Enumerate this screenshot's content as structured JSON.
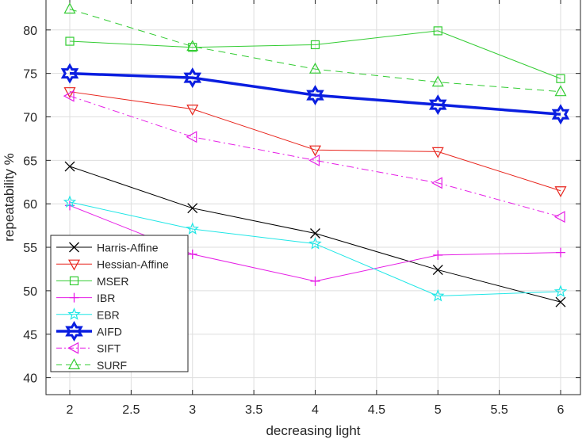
{
  "chart_data": {
    "type": "line",
    "title": "",
    "xlabel": "decreasing light",
    "ylabel": "repeatability %",
    "xlim": [
      1.8,
      6.2
    ],
    "ylim": [
      37.5,
      85
    ],
    "grid": true,
    "legend_position": "bottom-left",
    "x": [
      2,
      3,
      4,
      5,
      6
    ],
    "xticks": [
      2,
      2.5,
      3,
      3.5,
      4,
      4.5,
      5,
      5.5,
      6
    ],
    "xtick_labels": [
      "2",
      "2.5",
      "3",
      "3.5",
      "4",
      "4.5",
      "5",
      "5.5",
      "6"
    ],
    "yticks": [
      40,
      45,
      50,
      55,
      60,
      65,
      70,
      75,
      80
    ],
    "ytick_labels": [
      "40",
      "45",
      "50",
      "55",
      "60",
      "65",
      "70",
      "75",
      "80"
    ],
    "series": [
      {
        "name": "Harris-Affine",
        "values": [
          64.3,
          59.5,
          56.6,
          52.4,
          48.7
        ],
        "color": "#000000",
        "marker": "x",
        "dash": "solid",
        "width": 1
      },
      {
        "name": "Hessian-Affine",
        "values": [
          72.9,
          70.9,
          66.2,
          66.0,
          61.5
        ],
        "color": "#e8241c",
        "marker": "triangle-down",
        "dash": "solid",
        "width": 1
      },
      {
        "name": "MSER",
        "values": [
          78.7,
          78.0,
          78.3,
          79.9,
          74.4
        ],
        "color": "#33cc33",
        "marker": "square",
        "dash": "solid",
        "width": 1
      },
      {
        "name": "IBR",
        "values": [
          59.8,
          54.2,
          51.1,
          54.1,
          54.4
        ],
        "color": "#e61fe6",
        "marker": "plus",
        "dash": "solid",
        "width": 1
      },
      {
        "name": "EBR",
        "values": [
          60.2,
          57.1,
          55.4,
          49.4,
          49.9
        ],
        "color": "#1fe6e6",
        "marker": "star",
        "dash": "solid",
        "width": 1
      },
      {
        "name": "AIFD",
        "values": [
          75.0,
          74.5,
          72.5,
          71.4,
          70.3
        ],
        "color": "#0a1ee0",
        "marker": "hexagram",
        "dash": "solid",
        "width": 3.5
      },
      {
        "name": "SIFT",
        "values": [
          72.4,
          67.7,
          65.0,
          62.4,
          58.5
        ],
        "color": "#e61fe6",
        "marker": "triangle-left",
        "dash": "dashdot",
        "width": 1
      },
      {
        "name": "SURF",
        "values": [
          82.4,
          78.1,
          75.5,
          74.0,
          72.9
        ],
        "color": "#33cc33",
        "marker": "triangle-up",
        "dash": "dashed",
        "width": 1
      }
    ]
  }
}
